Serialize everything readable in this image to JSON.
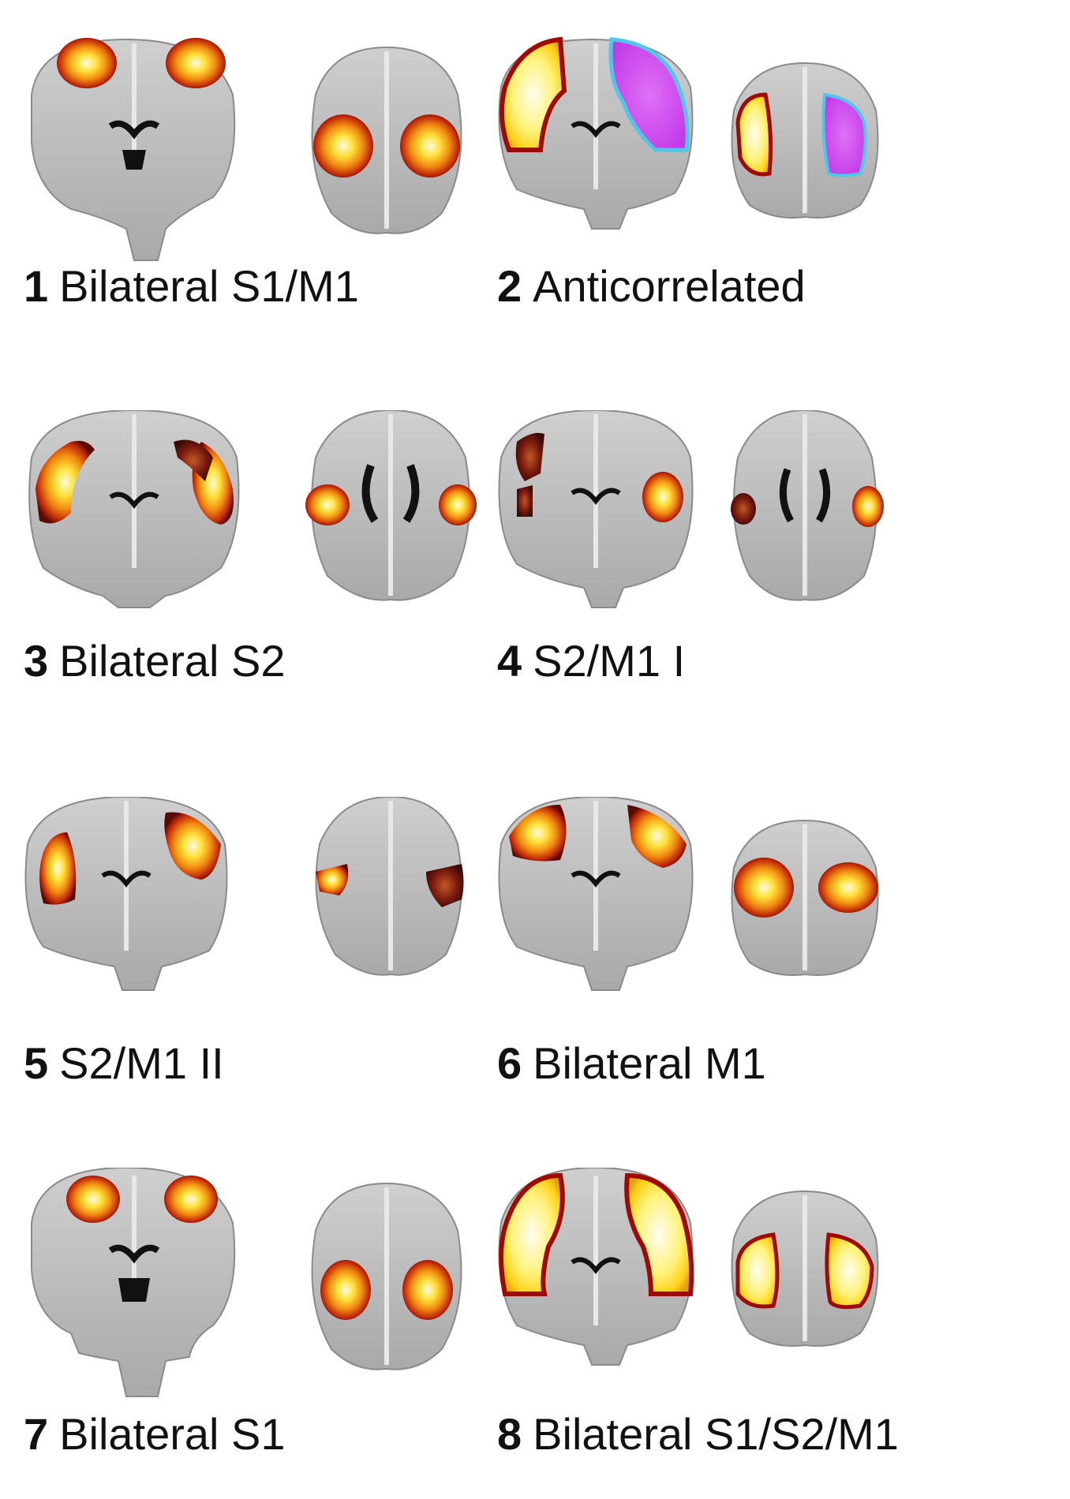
{
  "panels": [
    {
      "number": "1",
      "label": "Bilateral S1/M1"
    },
    {
      "number": "2",
      "label": "Anticorrelated"
    },
    {
      "number": "3",
      "label": "Bilateral S2"
    },
    {
      "number": "4",
      "label": "S2/M1 I"
    },
    {
      "number": "5",
      "label": "S2/M1 II"
    },
    {
      "number": "6",
      "label": "Bilateral M1"
    },
    {
      "number": "7",
      "label": "Bilateral S1"
    },
    {
      "number": "8",
      "label": "Bilateral S1/S2/M1"
    }
  ],
  "colors": {
    "positive_activation": "#ffd21a",
    "positive_edge": "#a00a05",
    "negative_activation": "#d94df0",
    "negative_edge": "#4fc7e8",
    "brain_tissue": "#b8b8b8"
  }
}
